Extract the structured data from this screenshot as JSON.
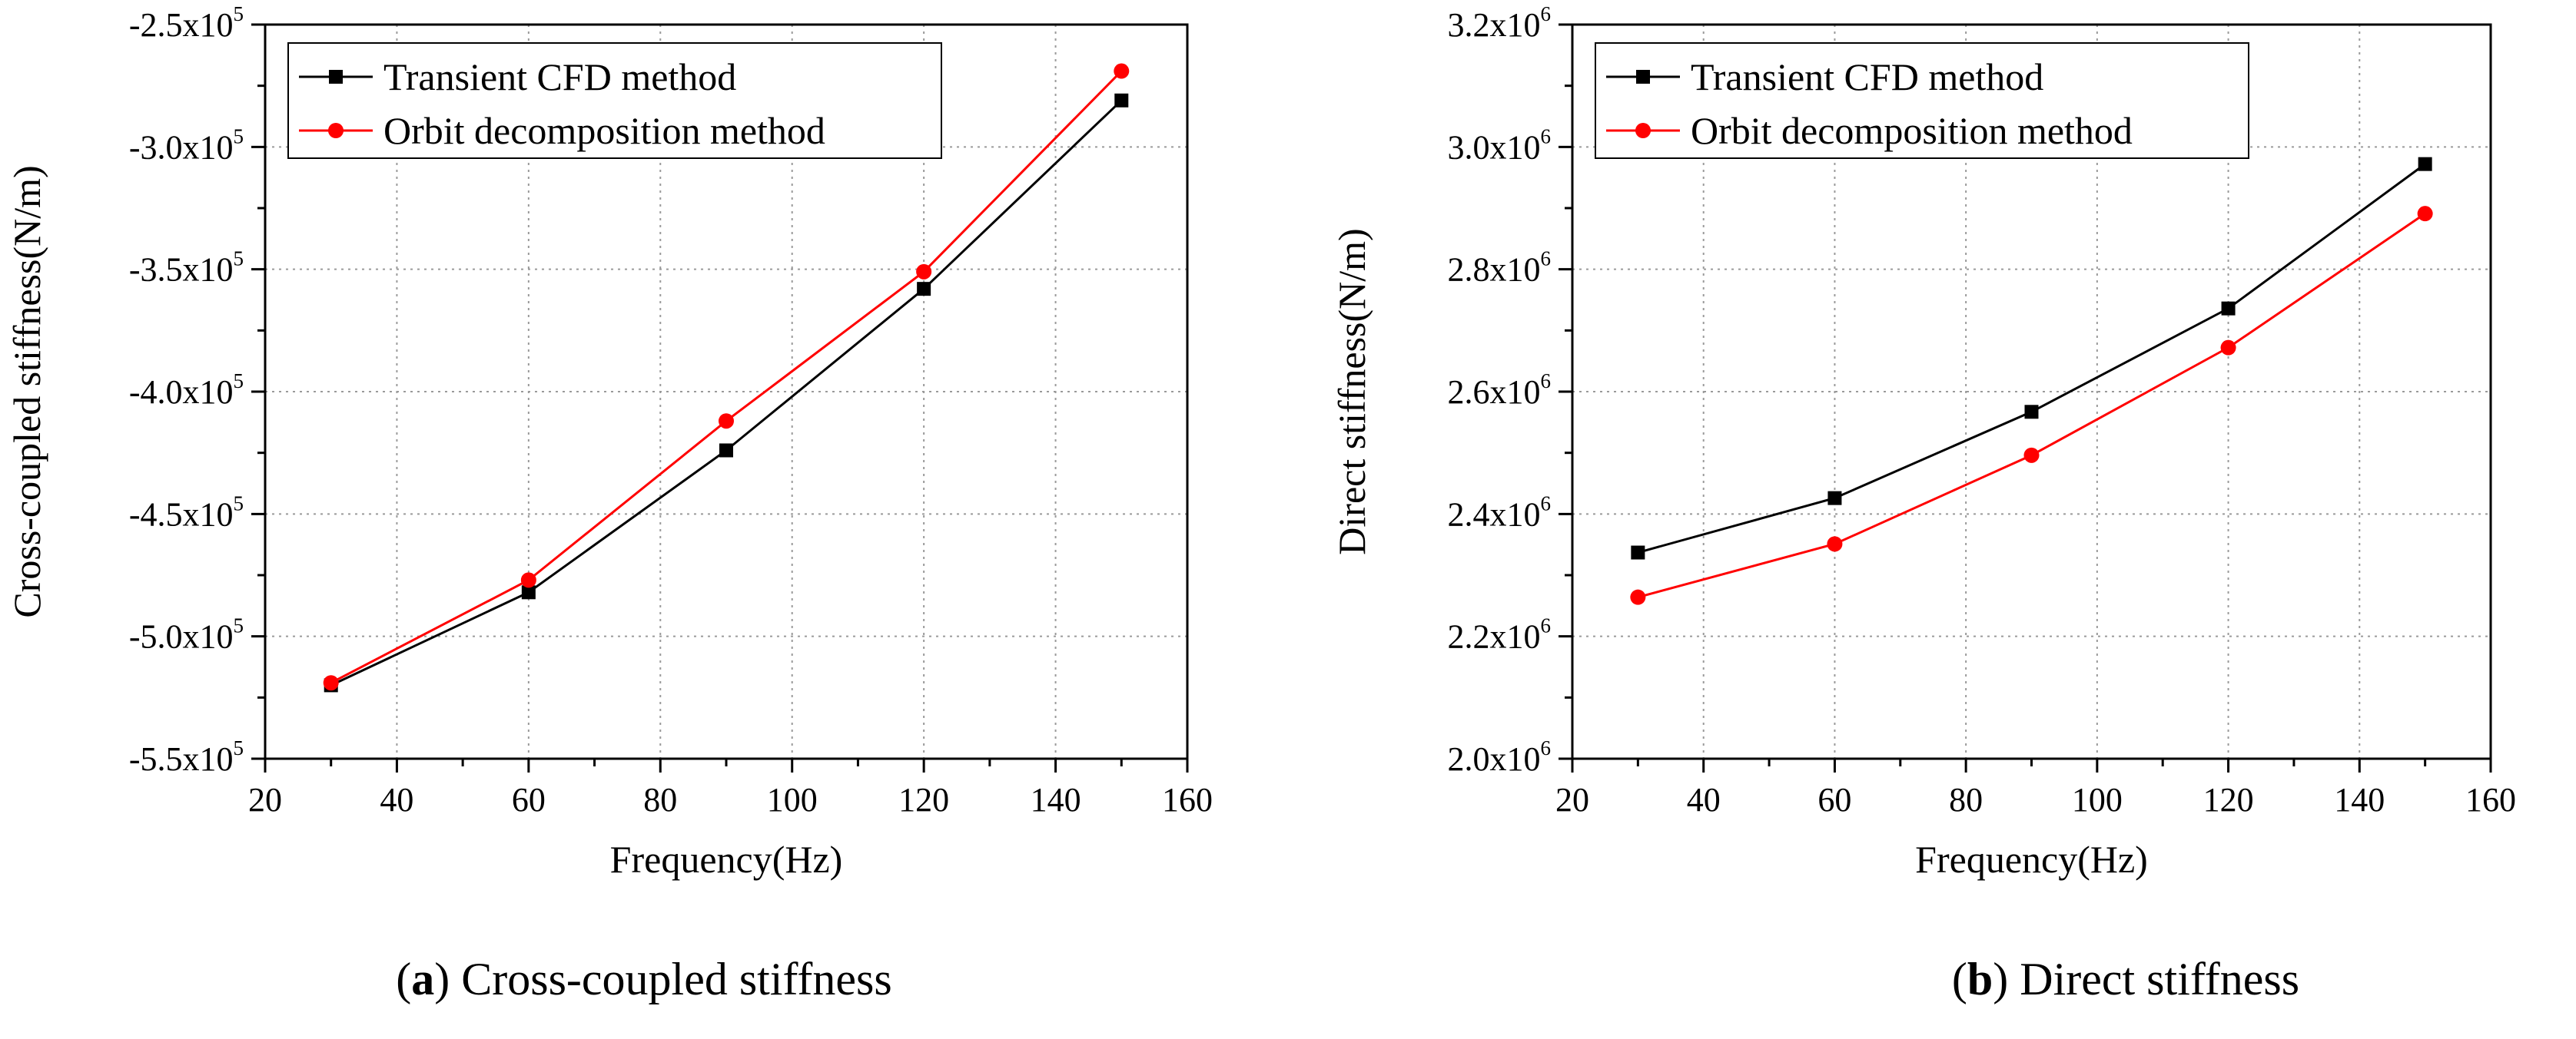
{
  "chart_data": [
    {
      "id": "a",
      "type": "line",
      "title": "Cross-coupled stiffness",
      "caption_letter": "a",
      "xlabel": "Frequency(Hz)",
      "ylabel": "Cross-coupled stiffness(N/m)",
      "xlim": [
        20,
        160
      ],
      "ylim": [
        -550000,
        -250000
      ],
      "xticks": [
        20,
        40,
        60,
        80,
        100,
        120,
        140,
        160
      ],
      "yticks": [
        {
          "value": -550000,
          "mantissa": "-5.5x10",
          "exp": "5"
        },
        {
          "value": -500000,
          "mantissa": "-5.0x10",
          "exp": "5"
        },
        {
          "value": -450000,
          "mantissa": "-4.5x10",
          "exp": "5"
        },
        {
          "value": -400000,
          "mantissa": "-4.0x10",
          "exp": "5"
        },
        {
          "value": -350000,
          "mantissa": "-3.5x10",
          "exp": "5"
        },
        {
          "value": -300000,
          "mantissa": "-3.0x10",
          "exp": "5"
        },
        {
          "value": -250000,
          "mantissa": "-2.5x10",
          "exp": "5"
        }
      ],
      "grid": true,
      "legend_position": "top-left",
      "x": [
        30,
        60,
        90,
        120,
        150
      ],
      "series": [
        {
          "name": "Transient CFD method",
          "color": "#000000",
          "marker": "square",
          "values": [
            -520000,
            -482000,
            -424000,
            -358000,
            -281000
          ]
        },
        {
          "name": "Orbit decomposition method",
          "color": "#ff0000",
          "marker": "circle",
          "values": [
            -519000,
            -477000,
            -412000,
            -351000,
            -269000
          ]
        }
      ]
    },
    {
      "id": "b",
      "type": "line",
      "title": "Direct stiffness",
      "caption_letter": "b",
      "xlabel": "Frequency(Hz)",
      "ylabel": "Direct stiffness(N/m)",
      "xlim": [
        20,
        160
      ],
      "ylim": [
        2000000,
        3200000
      ],
      "xticks": [
        20,
        40,
        60,
        80,
        100,
        120,
        140,
        160
      ],
      "yticks": [
        {
          "value": 2000000,
          "mantissa": "2.0x10",
          "exp": "6"
        },
        {
          "value": 2200000,
          "mantissa": "2.2x10",
          "exp": "6"
        },
        {
          "value": 2400000,
          "mantissa": "2.4x10",
          "exp": "6"
        },
        {
          "value": 2600000,
          "mantissa": "2.6x10",
          "exp": "6"
        },
        {
          "value": 2800000,
          "mantissa": "2.8x10",
          "exp": "6"
        },
        {
          "value": 3000000,
          "mantissa": "3.0x10",
          "exp": "6"
        },
        {
          "value": 3200000,
          "mantissa": "3.2x10",
          "exp": "6"
        }
      ],
      "grid": true,
      "legend_position": "top-left",
      "x": [
        30,
        60,
        90,
        120,
        150
      ],
      "series": [
        {
          "name": "Transient CFD method",
          "color": "#000000",
          "marker": "square",
          "values": [
            2337000,
            2426000,
            2567000,
            2736000,
            2972000
          ]
        },
        {
          "name": "Orbit decomposition method",
          "color": "#ff0000",
          "marker": "circle",
          "values": [
            2264000,
            2351000,
            2496000,
            2672000,
            2891000
          ]
        }
      ]
    }
  ]
}
